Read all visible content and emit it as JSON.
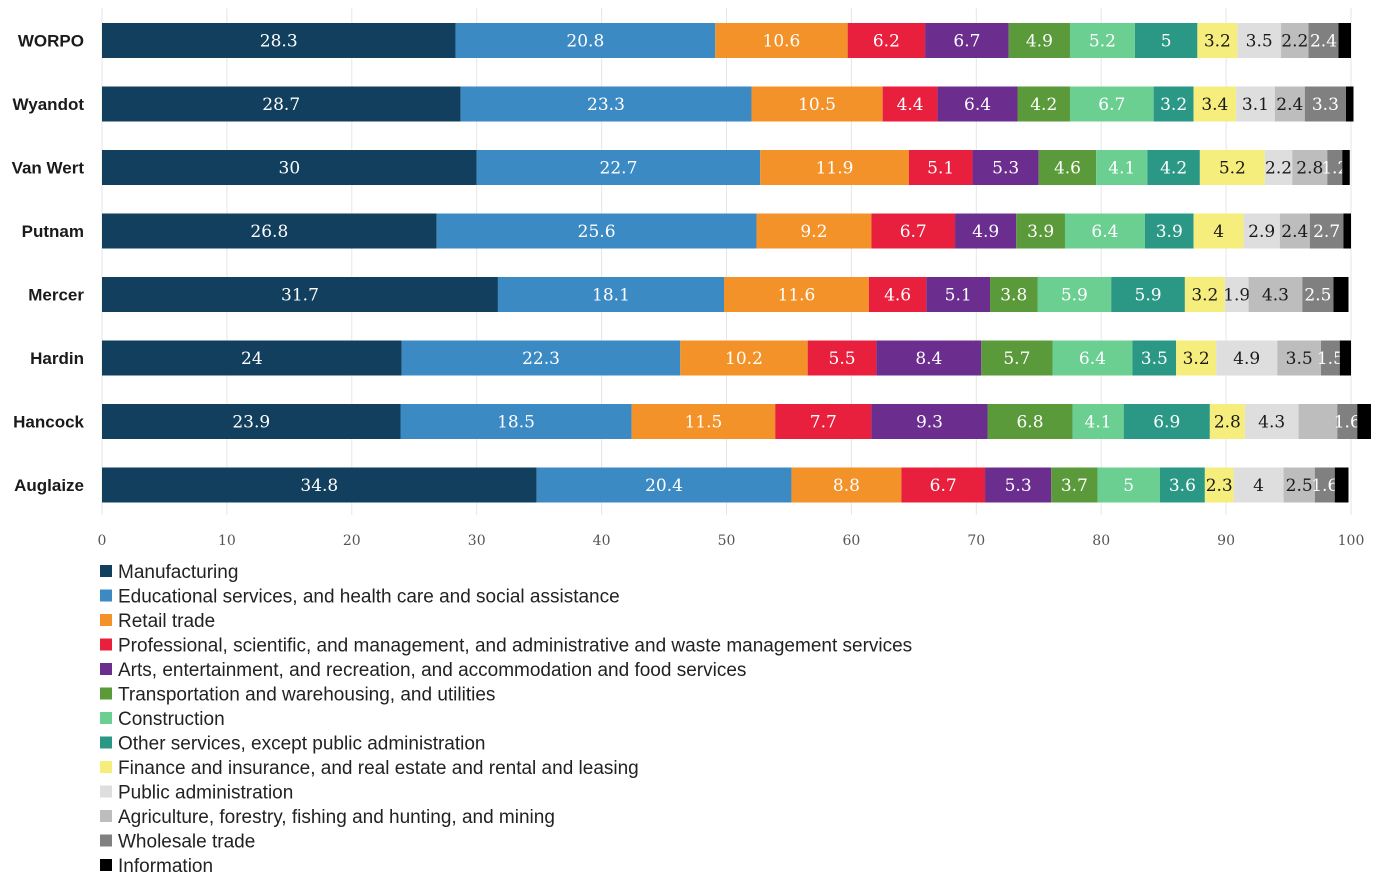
{
  "chart_data": {
    "type": "bar",
    "orientation": "horizontal",
    "stacked": true,
    "categories": [
      "WORPO",
      "Wyandot",
      "Van Wert",
      "Putnam",
      "Mercer",
      "Hardin",
      "Hancock",
      "Auglaize"
    ],
    "xlim": [
      0,
      100
    ],
    "xticks": [
      "0",
      "10",
      "20",
      "30",
      "40",
      "50",
      "60",
      "70",
      "80",
      "90",
      "100"
    ],
    "grid": true,
    "legend_position": "bottom-left",
    "series": [
      {
        "name": "Manufacturing",
        "color": "#123f5e",
        "label_color": "#ffffff",
        "values": [
          28.3,
          28.7,
          30,
          26.8,
          31.7,
          24,
          23.9,
          34.8
        ]
      },
      {
        "name": "Educational services, and health care and social assistance",
        "color": "#3c8ac4",
        "label_color": "#ffffff",
        "values": [
          20.8,
          23.3,
          22.7,
          25.6,
          18.1,
          22.3,
          18.5,
          20.4
        ]
      },
      {
        "name": "Retail trade",
        "color": "#f4922a",
        "label_color": "#ffffff",
        "values": [
          10.6,
          10.5,
          11.9,
          9.2,
          11.6,
          10.2,
          11.5,
          8.8
        ]
      },
      {
        "name": "Professional, scientific, and management, and administrative and waste management services",
        "color": "#e8203e",
        "label_color": "#ffffff",
        "values": [
          6.2,
          4.4,
          5.1,
          6.7,
          4.6,
          5.5,
          7.7,
          6.7
        ]
      },
      {
        "name": "Arts, entertainment, and recreation, and accommodation and food services",
        "color": "#6b2d8e",
        "label_color": "#ffffff",
        "values": [
          6.7,
          6.4,
          5.3,
          4.9,
          5.1,
          8.4,
          9.3,
          5.3
        ]
      },
      {
        "name": "Transportation and warehousing, and utilities",
        "color": "#5b9a3b",
        "label_color": "#ffffff",
        "values": [
          4.9,
          4.2,
          4.6,
          3.9,
          3.8,
          5.7,
          6.8,
          3.7
        ]
      },
      {
        "name": "Construction",
        "color": "#6ccf92",
        "label_color": "#ffffff",
        "values": [
          5.2,
          6.7,
          4.1,
          6.4,
          5.9,
          6.4,
          4.1,
          5
        ]
      },
      {
        "name": " Other services, except public administration",
        "color": "#2b9886",
        "label_color": "#ffffff",
        "values": [
          5,
          3.2,
          4.2,
          3.9,
          5.9,
          3.5,
          6.9,
          3.6
        ]
      },
      {
        "name": "Finance and insurance, and real estate and rental and leasing",
        "color": "#f6ee7c",
        "label_color": "#1a1a1a",
        "values": [
          3.2,
          3.4,
          5.2,
          4,
          3.2,
          3.2,
          2.8,
          2.3
        ]
      },
      {
        "name": "Public administration",
        "color": "#dedede",
        "label_color": "#1a1a1a",
        "values": [
          3.5,
          3.1,
          2.2,
          2.9,
          1.9,
          4.9,
          4.3,
          4
        ]
      },
      {
        "name": "Agriculture, forestry, fishing and hunting, and mining",
        "color": "#bdbdbd",
        "label_color": "#1a1a1a",
        "values": [
          2.2,
          2.4,
          2.8,
          2.4,
          4.3,
          3.5,
          3.1,
          2.5
        ]
      },
      {
        "name": "Wholesale trade",
        "color": "#808080",
        "label_color": "#ffffff",
        "values": [
          2.4,
          3.3,
          1.2,
          2.7,
          2.5,
          1.5,
          1.6,
          1.6
        ]
      },
      {
        "name": "Information",
        "color": "#000000",
        "label_color": "#ffffff",
        "values": [
          1,
          0.6,
          0.6,
          0.6,
          1.2,
          0.9,
          1.1,
          1.1
        ]
      }
    ],
    "value_labels_shown": [
      [
        true,
        true,
        true,
        true,
        true,
        true,
        true,
        true,
        true,
        true,
        true,
        true,
        false
      ],
      [
        true,
        true,
        true,
        true,
        true,
        true,
        true,
        true,
        true,
        true,
        true,
        true,
        false
      ],
      [
        true,
        true,
        true,
        true,
        true,
        true,
        true,
        true,
        true,
        true,
        true,
        true,
        false
      ],
      [
        true,
        true,
        true,
        true,
        true,
        true,
        true,
        true,
        true,
        true,
        true,
        true,
        false
      ],
      [
        true,
        true,
        true,
        true,
        true,
        true,
        true,
        true,
        true,
        true,
        true,
        true,
        false
      ],
      [
        true,
        true,
        true,
        true,
        true,
        true,
        true,
        true,
        true,
        true,
        true,
        true,
        false
      ],
      [
        true,
        true,
        true,
        true,
        true,
        true,
        true,
        true,
        true,
        true,
        false,
        true,
        false
      ],
      [
        true,
        true,
        true,
        true,
        true,
        true,
        true,
        true,
        true,
        true,
        true,
        true,
        false
      ]
    ]
  }
}
